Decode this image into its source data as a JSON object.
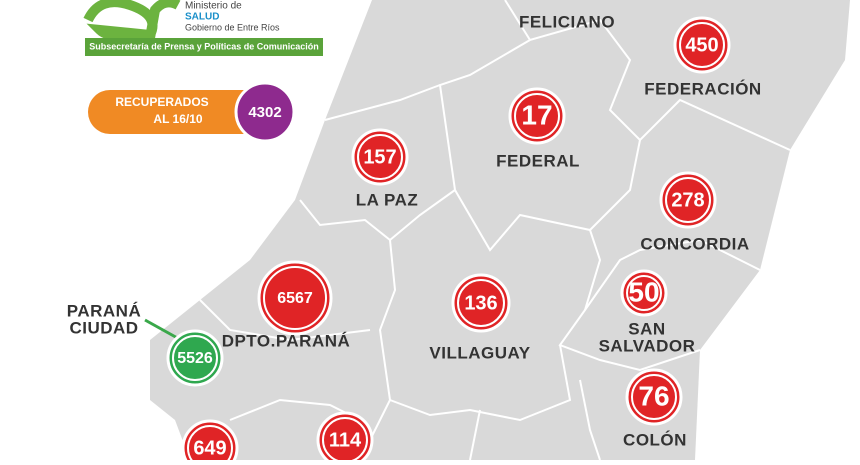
{
  "header": {
    "ministry": "Ministerio de",
    "ministry_area": "SALUD",
    "government": "Gobierno de Entre Ríos",
    "banner": "Subsecretaría de Prensa y Políticas de Comunicación"
  },
  "recovered": {
    "label_lines": [
      "RECUPERADOS",
      "AL 16/10"
    ],
    "count": "4302"
  },
  "departments": [
    {
      "name": "FELICIANO"
    },
    {
      "name": "FEDERACIÓN",
      "count": "450"
    },
    {
      "name": "FEDERAL",
      "count": "17"
    },
    {
      "name": "LA PAZ",
      "count": "157"
    },
    {
      "name": "CONCORDIA",
      "count": "278"
    },
    {
      "name": "DPTO.PARANÁ",
      "count": "6567"
    },
    {
      "name_lines": [
        "PARANÁ",
        "CIUDAD"
      ],
      "count": "5526"
    },
    {
      "name": "VILLAGUAY",
      "count": "136"
    },
    {
      "name_lines": [
        "SAN",
        "SALVADOR"
      ],
      "count": "50"
    },
    {
      "name": "COLÓN",
      "count": "76"
    },
    {
      "count": "649"
    },
    {
      "count": "114"
    }
  ]
}
